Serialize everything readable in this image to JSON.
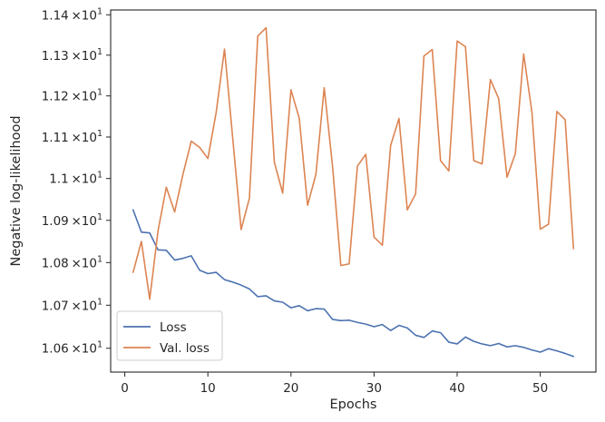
{
  "chart_data": {
    "type": "line",
    "xlabel": "Epochs",
    "ylabel": "Negative log-likelihood",
    "xlim": [
      -1.7,
      56.7
    ],
    "ylim": [
      10.545,
      11.412
    ],
    "yscale": "log",
    "grid": false,
    "legend_position": "lower-left",
    "x_ticks": [
      {
        "value": 0,
        "label": "0"
      },
      {
        "value": 10,
        "label": "10"
      },
      {
        "value": 20,
        "label": "20"
      },
      {
        "value": 30,
        "label": "30"
      },
      {
        "value": 40,
        "label": "40"
      },
      {
        "value": 50,
        "label": "50"
      }
    ],
    "y_ticks": [
      {
        "value": 10.6,
        "mantissa": "1.06",
        "base": "10",
        "exponent": "1"
      },
      {
        "value": 10.7,
        "mantissa": "1.07",
        "base": "10",
        "exponent": "1"
      },
      {
        "value": 10.8,
        "mantissa": "1.08",
        "base": "10",
        "exponent": "1"
      },
      {
        "value": 10.9,
        "mantissa": "1.09",
        "base": "10",
        "exponent": "1"
      },
      {
        "value": 11.0,
        "mantissa": "1.1",
        "base": "10",
        "exponent": "1"
      },
      {
        "value": 11.1,
        "mantissa": "1.11",
        "base": "10",
        "exponent": "1"
      },
      {
        "value": 11.2,
        "mantissa": "1.12",
        "base": "10",
        "exponent": "1"
      },
      {
        "value": 11.3,
        "mantissa": "1.13",
        "base": "10",
        "exponent": "1"
      },
      {
        "value": 11.4,
        "mantissa": "1.14",
        "base": "10",
        "exponent": "1"
      }
    ],
    "x": [
      1,
      2,
      3,
      4,
      5,
      6,
      7,
      8,
      9,
      10,
      11,
      12,
      13,
      14,
      15,
      16,
      17,
      18,
      19,
      20,
      21,
      22,
      23,
      24,
      25,
      26,
      27,
      28,
      29,
      30,
      31,
      32,
      33,
      34,
      35,
      36,
      37,
      38,
      39,
      40,
      41,
      42,
      43,
      44,
      45,
      46,
      47,
      48,
      49,
      50,
      51,
      52,
      53,
      54
    ],
    "series": [
      {
        "name": "Loss",
        "color": "#4c72b0",
        "values": [
          10.925,
          10.872,
          10.87,
          10.83,
          10.829,
          10.806,
          10.81,
          10.816,
          10.782,
          10.774,
          10.777,
          10.76,
          10.754,
          10.747,
          10.738,
          10.72,
          10.722,
          10.71,
          10.707,
          10.694,
          10.699,
          10.687,
          10.692,
          10.691,
          10.667,
          10.664,
          10.665,
          10.66,
          10.656,
          10.65,
          10.655,
          10.641,
          10.653,
          10.647,
          10.63,
          10.625,
          10.64,
          10.636,
          10.614,
          10.61,
          10.626,
          10.616,
          10.61,
          10.606,
          10.611,
          10.603,
          10.606,
          10.602,
          10.596,
          10.591,
          10.599,
          10.594,
          10.588,
          10.581
        ]
      },
      {
        "name": "Val. loss",
        "color": "#dd8452",
        "values": [
          10.777,
          10.85,
          10.714,
          10.875,
          10.979,
          10.92,
          11.01,
          11.09,
          11.075,
          11.048,
          11.16,
          11.315,
          11.095,
          10.878,
          10.953,
          11.347,
          11.368,
          11.039,
          10.965,
          11.215,
          11.145,
          10.936,
          11.01,
          11.22,
          11.03,
          10.793,
          10.797,
          11.03,
          11.058,
          10.86,
          10.841,
          11.08,
          11.145,
          10.925,
          10.963,
          11.298,
          11.314,
          11.043,
          11.018,
          11.335,
          11.321,
          11.043,
          11.035,
          11.24,
          11.193,
          11.003,
          11.06,
          11.303,
          11.16,
          10.879,
          10.891,
          11.162,
          11.142,
          10.833
        ]
      }
    ]
  }
}
